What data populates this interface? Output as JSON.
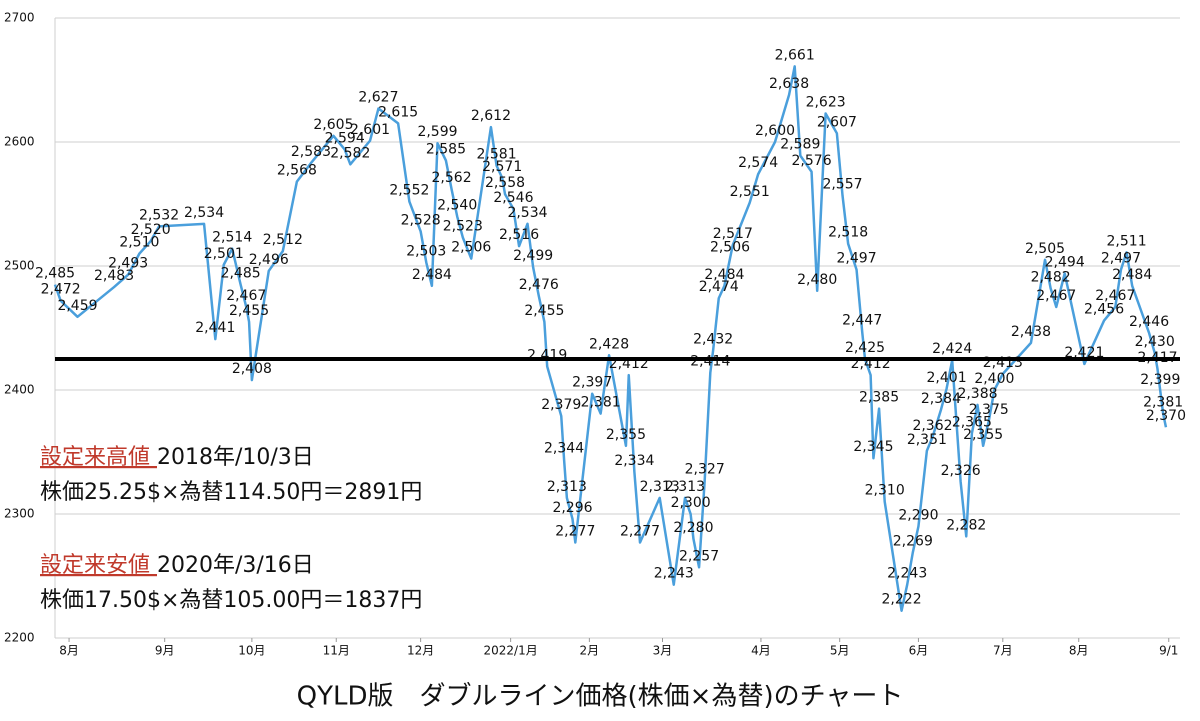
{
  "chart_data": {
    "type": "line",
    "title": "QYLD版　ダブルライン価格(株価×為替)のチャート",
    "xlim": [
      0,
      400
    ],
    "xticks": [
      {
        "value": 5,
        "label": "8月"
      },
      {
        "value": 39,
        "label": "9月"
      },
      {
        "value": 70,
        "label": "10月"
      },
      {
        "value": 100,
        "label": "11月"
      },
      {
        "value": 130,
        "label": "12月"
      },
      {
        "value": 162,
        "label": "2022/1月"
      },
      {
        "value": 190,
        "label": "2月"
      },
      {
        "value": 216,
        "label": "3月"
      },
      {
        "value": 251,
        "label": "4月"
      },
      {
        "value": 279,
        "label": "5月"
      },
      {
        "value": 307,
        "label": "6月"
      },
      {
        "value": 337,
        "label": "7月"
      },
      {
        "value": 364,
        "label": "8月"
      },
      {
        "value": 396,
        "label": "9/1"
      }
    ],
    "ylim": [
      2200,
      2700
    ],
    "yticks": [
      2200,
      2300,
      2400,
      2500,
      2600,
      2700
    ],
    "grid": true,
    "reference_line": 2425,
    "annotations": [
      {
        "highlight": "設定来高値 ",
        "text": "2018年/10/3日"
      },
      {
        "text": "株価25.25$×為替114.50円＝2891円"
      },
      {
        "highlight": "設定来安値 ",
        "text": "2020年/3/16日"
      },
      {
        "text": "株価17.50$×為替105.00円＝1837円"
      }
    ],
    "series": [
      {
        "color": "#4a9fdc",
        "x": [
          0,
          2,
          8,
          21,
          26,
          30,
          34,
          37,
          53,
          57,
          60,
          63,
          66,
          68,
          69,
          70,
          76,
          81,
          86,
          91,
          99,
          103,
          105,
          112,
          115,
          122,
          126,
          130,
          132,
          134,
          136,
          139,
          141,
          143,
          145,
          148,
          155,
          157,
          159,
          160,
          163,
          165,
          168,
          170,
          172,
          174,
          175,
          180,
          181,
          182,
          184,
          185,
          191,
          194,
          197,
          203,
          204,
          206,
          208,
          215,
          220,
          224,
          226,
          227,
          229,
          231,
          233,
          234,
          236,
          238,
          240,
          241,
          247,
          250,
          256,
          261,
          263,
          265,
          269,
          271,
          274,
          278,
          280,
          282,
          285,
          287,
          288,
          290,
          291,
          293,
          295,
          301,
          303,
          305,
          307,
          310,
          312,
          315,
          317,
          319,
          322,
          324,
          326,
          328,
          330,
          332,
          334,
          337,
          347,
          352,
          354,
          356,
          359,
          366,
          373,
          377,
          379,
          381,
          383,
          389,
          391,
          392,
          393,
          394,
          395
        ],
        "values": [
          2485,
          2472,
          2459,
          2483,
          2493,
          2510,
          2520,
          2532,
          2534,
          2441,
          2501,
          2514,
          2485,
          2467,
          2455,
          2408,
          2496,
          2512,
          2568,
          2583,
          2605,
          2594,
          2582,
          2601,
          2627,
          2615,
          2552,
          2528,
          2503,
          2484,
          2599,
          2585,
          2562,
          2540,
          2523,
          2506,
          2612,
          2581,
          2571,
          2558,
          2546,
          2516,
          2534,
          2499,
          2476,
          2455,
          2419,
          2379,
          2344,
          2313,
          2296,
          2277,
          2397,
          2381,
          2428,
          2355,
          2412,
          2334,
          2277,
          2313,
          2243,
          2313,
          2300,
          2280,
          2257,
          2327,
          2414,
          2432,
          2474,
          2484,
          2506,
          2517,
          2551,
          2574,
          2600,
          2638,
          2661,
          2589,
          2576,
          2480,
          2623,
          2607,
          2557,
          2518,
          2497,
          2447,
          2425,
          2412,
          2345,
          2385,
          2310,
          2222,
          2243,
          2269,
          2290,
          2351,
          2362,
          2384,
          2401,
          2424,
          2326,
          2282,
          2365,
          2388,
          2355,
          2375,
          2400,
          2413,
          2438,
          2505,
          2482,
          2467,
          2494,
          2421,
          2456,
          2467,
          2497,
          2511,
          2484,
          2446,
          2430,
          2417,
          2399,
          2381,
          2370
        ],
        "value_labels": [
          "2,485",
          "2,472",
          "2,459",
          "2,483",
          "2,493",
          "2,510",
          "2,520",
          "2,532",
          "2,534",
          "2,441",
          "2,501",
          "2,514",
          "2,485",
          "2,467",
          "2,455",
          "2,408",
          "2,496",
          "2,512",
          "2,568",
          "2,583",
          "2,605",
          "2,594",
          "2,582",
          "2,601",
          "2,627",
          "2,615",
          "2,552",
          "2,528",
          "2,503",
          "2,484",
          "2,599",
          "2,585",
          "2,562",
          "2,540",
          "2,523",
          "2,506",
          "2,612",
          "2,581",
          "2,571",
          "2,558",
          "2,546",
          "2,516",
          "2,534",
          "2,499",
          "2,476",
          "2,455",
          "2,419",
          "2,379",
          "2,344",
          "2,313",
          "2,296",
          "2,277",
          "2,397",
          "2,381",
          "2,428",
          "2,355",
          "2,412",
          "2,334",
          "2,277",
          "2,313",
          "2,243",
          "2,313",
          "2,300",
          "2,280",
          "2,257",
          "2,327",
          "2,414",
          "2,432",
          "2,474",
          "2,484",
          "2,506",
          "2,517",
          "2,551",
          "2,574",
          "2,600",
          "2,638",
          "2,661",
          "2,589",
          "2,576",
          "2,480",
          "2,623",
          "2,607",
          "2,557",
          "2,518",
          "2,497",
          "2,447",
          "2,425",
          "2,412",
          "2,345",
          "2,385",
          "2,310",
          "2,222",
          "2,243",
          "2,269",
          "2,290",
          "2,351",
          "2,362",
          "2,384",
          "2,401",
          "2,424",
          "2,326",
          "2,282",
          "2,365",
          "2,388",
          "2,355",
          "2,375",
          "2,400",
          "2,413",
          "2,438",
          "2,505",
          "2,482",
          "2,467",
          "2,494",
          "2,421",
          "2,456",
          "2,467",
          "2,497",
          "2,511",
          "2,484",
          "2,446",
          "2,430",
          "2,417",
          "2,399",
          "2,381",
          "2,370"
        ]
      }
    ]
  }
}
